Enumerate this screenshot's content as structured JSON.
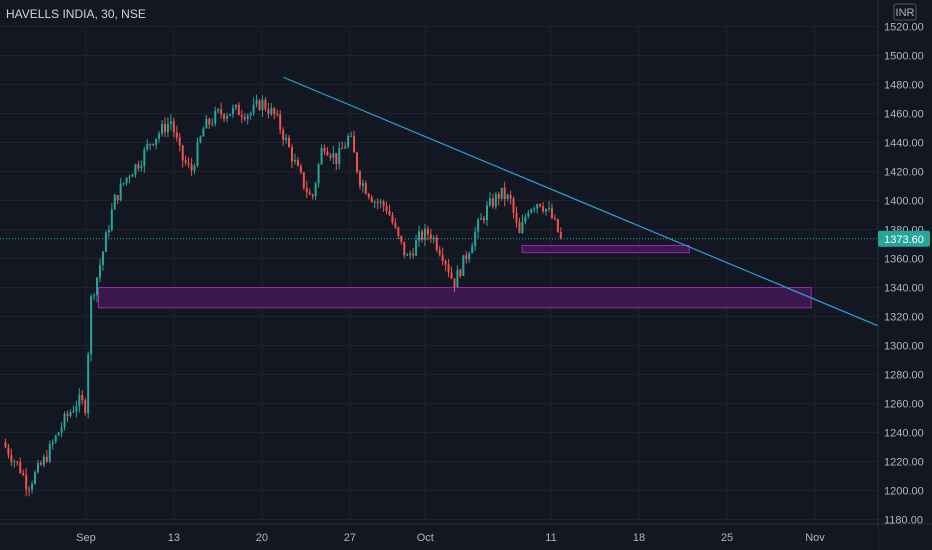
{
  "header": {
    "symbol_title": "HAVELLS INDIA, 30, NSE"
  },
  "colors": {
    "background": "#131722",
    "grid": "#1e222d",
    "text": "#b2b5be",
    "up": "#26a69a",
    "down": "#ef5350",
    "trendline": "#2f9fd6",
    "zone_border": "#9c27b0",
    "zone_fill": "#4a1a5c",
    "last_price_bg": "#26a69a"
  },
  "chart_data": {
    "type": "candlestick",
    "currency": "INR",
    "last_price": "1373.60",
    "ylim": [
      1173,
      1528
    ],
    "x_range_days": [
      -0.4,
      70
    ],
    "y_ticks": [
      "1520.00",
      "1500.00",
      "1480.00",
      "1460.00",
      "1440.00",
      "1420.00",
      "1400.00",
      "1380.00",
      "1360.00",
      "1340.00",
      "1320.00",
      "1300.00",
      "1280.00",
      "1260.00",
      "1240.00",
      "1220.00",
      "1200.00",
      "1180.00"
    ],
    "x_ticks": [
      {
        "label": "Sep",
        "day": 6
      },
      {
        "label": "13",
        "day": 13
      },
      {
        "label": "20",
        "day": 20
      },
      {
        "label": "27",
        "day": 27
      },
      {
        "label": "Oct",
        "day": 33
      },
      {
        "label": "11",
        "day": 43
      },
      {
        "label": "18",
        "day": 50
      },
      {
        "label": "25",
        "day": 57
      },
      {
        "label": "Nov",
        "day": 64
      }
    ],
    "price_path": [
      [
        -0.4,
        1233
      ],
      [
        1,
        1215
      ],
      [
        1.6,
        1203
      ],
      [
        3,
        1222
      ],
      [
        4.5,
        1248
      ],
      [
        5.6,
        1262
      ],
      [
        6.2,
        1258
      ],
      [
        6.6,
        1330
      ],
      [
        7.2,
        1350
      ],
      [
        8.5,
        1400
      ],
      [
        9.6,
        1418
      ],
      [
        10.6,
        1428
      ],
      [
        11.3,
        1440
      ],
      [
        12.2,
        1448
      ],
      [
        13,
        1455
      ],
      [
        13.8,
        1430
      ],
      [
        14.6,
        1420
      ],
      [
        15.6,
        1450
      ],
      [
        16.8,
        1460
      ],
      [
        18.2,
        1462
      ],
      [
        19.3,
        1460
      ],
      [
        20.2,
        1468
      ],
      [
        21.3,
        1458
      ],
      [
        22.2,
        1440
      ],
      [
        23.2,
        1418
      ],
      [
        24.2,
        1400
      ],
      [
        25.1,
        1440
      ],
      [
        26.2,
        1428
      ],
      [
        27.2,
        1445
      ],
      [
        28,
        1415
      ],
      [
        29.2,
        1400
      ],
      [
        30.2,
        1395
      ],
      [
        31,
        1375
      ],
      [
        31.8,
        1360
      ],
      [
        32.8,
        1375
      ],
      [
        33.6,
        1378
      ],
      [
        34.7,
        1362
      ],
      [
        35.5,
        1343
      ],
      [
        36.3,
        1358
      ],
      [
        37.3,
        1380
      ],
      [
        38.2,
        1395
      ],
      [
        39.2,
        1405
      ],
      [
        40,
        1400
      ],
      [
        40.7,
        1375
      ],
      [
        41.4,
        1395
      ],
      [
        42.3,
        1400
      ],
      [
        43.2,
        1390
      ],
      [
        44,
        1374
      ]
    ],
    "trendline": {
      "points": [
        [
          21.7,
          1485
        ],
        [
          70,
          1310
        ]
      ]
    },
    "zones": [
      {
        "x0": 7.0,
        "x1": 63.7,
        "y_low": 1326,
        "y_high": 1340
      },
      {
        "x0": 40.7,
        "x1": 54.0,
        "y_low": 1364,
        "y_high": 1369
      }
    ]
  }
}
